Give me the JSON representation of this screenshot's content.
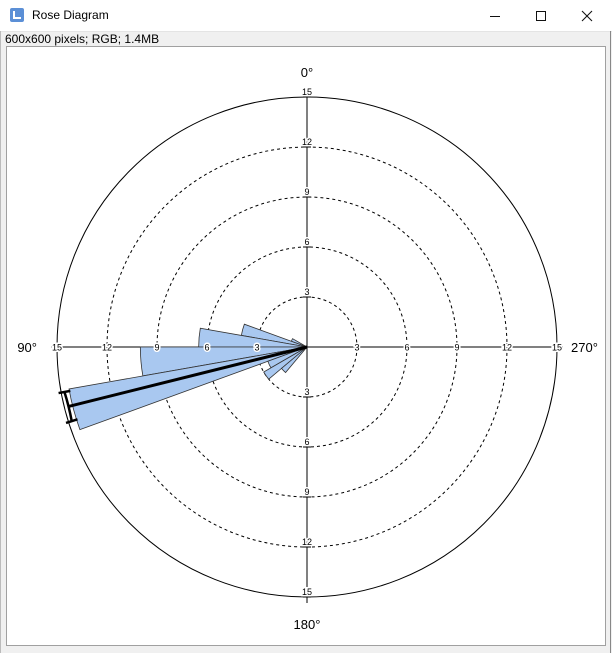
{
  "window": {
    "title": "Rose Diagram",
    "info": "600x600 pixels; RGB; 1.4MB",
    "minimize_icon": "minimize-icon",
    "maximize_icon": "maximize-icon",
    "close_icon": "close-icon"
  },
  "chart_data": {
    "type": "rose",
    "title": "",
    "direction_labels": {
      "top": "0°",
      "left": "90°",
      "bottom": "180°",
      "right": "270°"
    },
    "rings": [
      3,
      6,
      9,
      12,
      15
    ],
    "r_max": 15,
    "ring_labels": [
      "3",
      "6",
      "9",
      "12",
      "15"
    ],
    "orientation": "0° at top, angles increasing counterclockwise",
    "bin_width_deg": 10,
    "bins": [
      {
        "start": 60,
        "end": 70,
        "count": 1.0
      },
      {
        "start": 70,
        "end": 80,
        "count": 4.0
      },
      {
        "start": 80,
        "end": 90,
        "count": 6.5
      },
      {
        "start": 90,
        "end": 100,
        "count": 10.0
      },
      {
        "start": 100,
        "end": 110,
        "count": 14.5
      },
      {
        "start": 110,
        "end": 120,
        "count": 2.5
      },
      {
        "start": 120,
        "end": 130,
        "count": 3.0
      },
      {
        "start": 130,
        "end": 140,
        "count": 2.0
      }
    ],
    "mean_direction_deg": 104,
    "mean_length": 14.8,
    "confidence_half_width_deg": 3.5,
    "wedge_color": "#a9c8f0",
    "wedge_stroke": "#333333",
    "grid": true
  }
}
